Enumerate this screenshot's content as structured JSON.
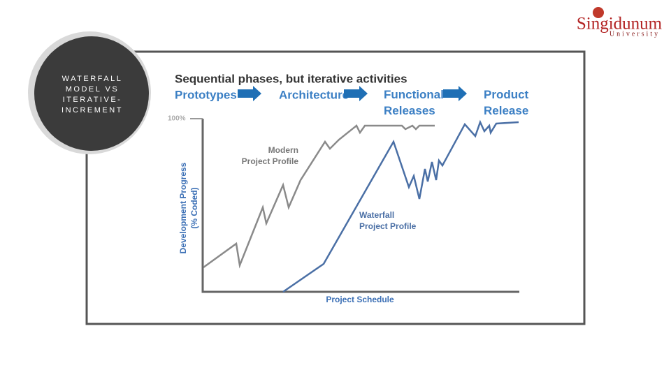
{
  "slide": {
    "title": "WATERFALL MODEL VS ITERATIVE-INCREMENT",
    "logo": {
      "name": "Singidunum",
      "sub": "University"
    },
    "figure": {
      "heading": "Sequential phases, but iterative activities",
      "phases": [
        "Prototypes",
        "Architecture",
        "Functional Releases",
        "Product Release"
      ],
      "y_top_label": "100%",
      "y_label": [
        "Development Progress",
        "(% Coded)"
      ],
      "x_label": "Project Schedule",
      "curve_labels": [
        [
          "Modern",
          "Project Profile"
        ],
        [
          "Waterfall",
          "Project Profile"
        ]
      ]
    }
  }
}
